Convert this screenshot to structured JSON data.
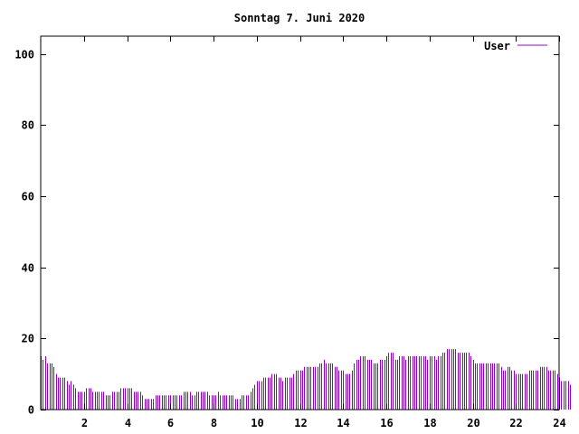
{
  "chart_data": {
    "type": "bar",
    "title": "Sonntag 7. Juni 2020",
    "xlabel": "",
    "ylabel": "",
    "xlim": [
      0,
      24
    ],
    "ylim": [
      0,
      105
    ],
    "x_ticks": [
      2,
      4,
      6,
      8,
      10,
      12,
      14,
      16,
      18,
      20,
      22,
      24
    ],
    "y_ticks": [
      0,
      20,
      40,
      60,
      80,
      100
    ],
    "grid": false,
    "legend_position": "top-right",
    "interval_hours": 0.1,
    "series": [
      {
        "name": "User",
        "color": "#9400d3",
        "values": [
          15,
          14,
          15,
          13,
          13,
          13,
          12,
          10,
          9,
          9,
          9,
          9,
          8,
          7,
          8,
          7,
          6,
          5,
          5,
          5,
          5,
          6,
          6,
          6,
          5,
          5,
          5,
          5,
          5,
          5,
          4,
          4,
          4,
          5,
          5,
          5,
          5,
          6,
          6,
          6,
          6,
          6,
          6,
          5,
          5,
          5,
          5,
          4,
          3,
          3,
          3,
          3,
          3,
          4,
          4,
          4,
          4,
          4,
          4,
          4,
          4,
          4,
          4,
          4,
          4,
          4,
          5,
          5,
          5,
          5,
          4,
          4,
          5,
          5,
          5,
          5,
          5,
          5,
          4,
          4,
          4,
          4,
          5,
          4,
          4,
          4,
          4,
          4,
          4,
          4,
          3,
          3,
          3,
          4,
          4,
          4,
          4,
          5,
          6,
          7,
          8,
          8,
          8,
          9,
          9,
          9,
          9,
          10,
          10,
          10,
          9,
          9,
          8,
          9,
          9,
          9,
          9,
          10,
          11,
          11,
          11,
          11,
          12,
          12,
          12,
          12,
          12,
          12,
          12,
          13,
          13,
          14,
          13,
          13,
          13,
          13,
          12,
          12,
          11,
          11,
          11,
          10,
          10,
          10,
          11,
          13,
          14,
          14,
          15,
          15,
          15,
          14,
          14,
          14,
          13,
          13,
          13,
          14,
          14,
          14,
          15,
          16,
          16,
          16,
          14,
          14,
          15,
          15,
          15,
          14,
          15,
          15,
          15,
          15,
          15,
          15,
          15,
          15,
          15,
          14,
          15,
          15,
          15,
          14,
          15,
          15,
          16,
          16,
          17,
          17,
          17,
          17,
          17,
          16,
          16,
          16,
          16,
          16,
          16,
          15,
          14,
          13,
          13,
          13,
          13,
          13,
          13,
          13,
          13,
          13,
          13,
          13,
          13,
          12,
          11,
          11,
          12,
          12,
          11,
          11,
          10,
          10,
          10,
          10,
          10,
          10,
          11,
          11,
          11,
          11,
          11,
          12,
          12,
          12,
          12,
          11,
          11,
          11,
          11,
          10,
          9,
          8,
          8,
          8,
          8,
          7
        ]
      }
    ]
  }
}
